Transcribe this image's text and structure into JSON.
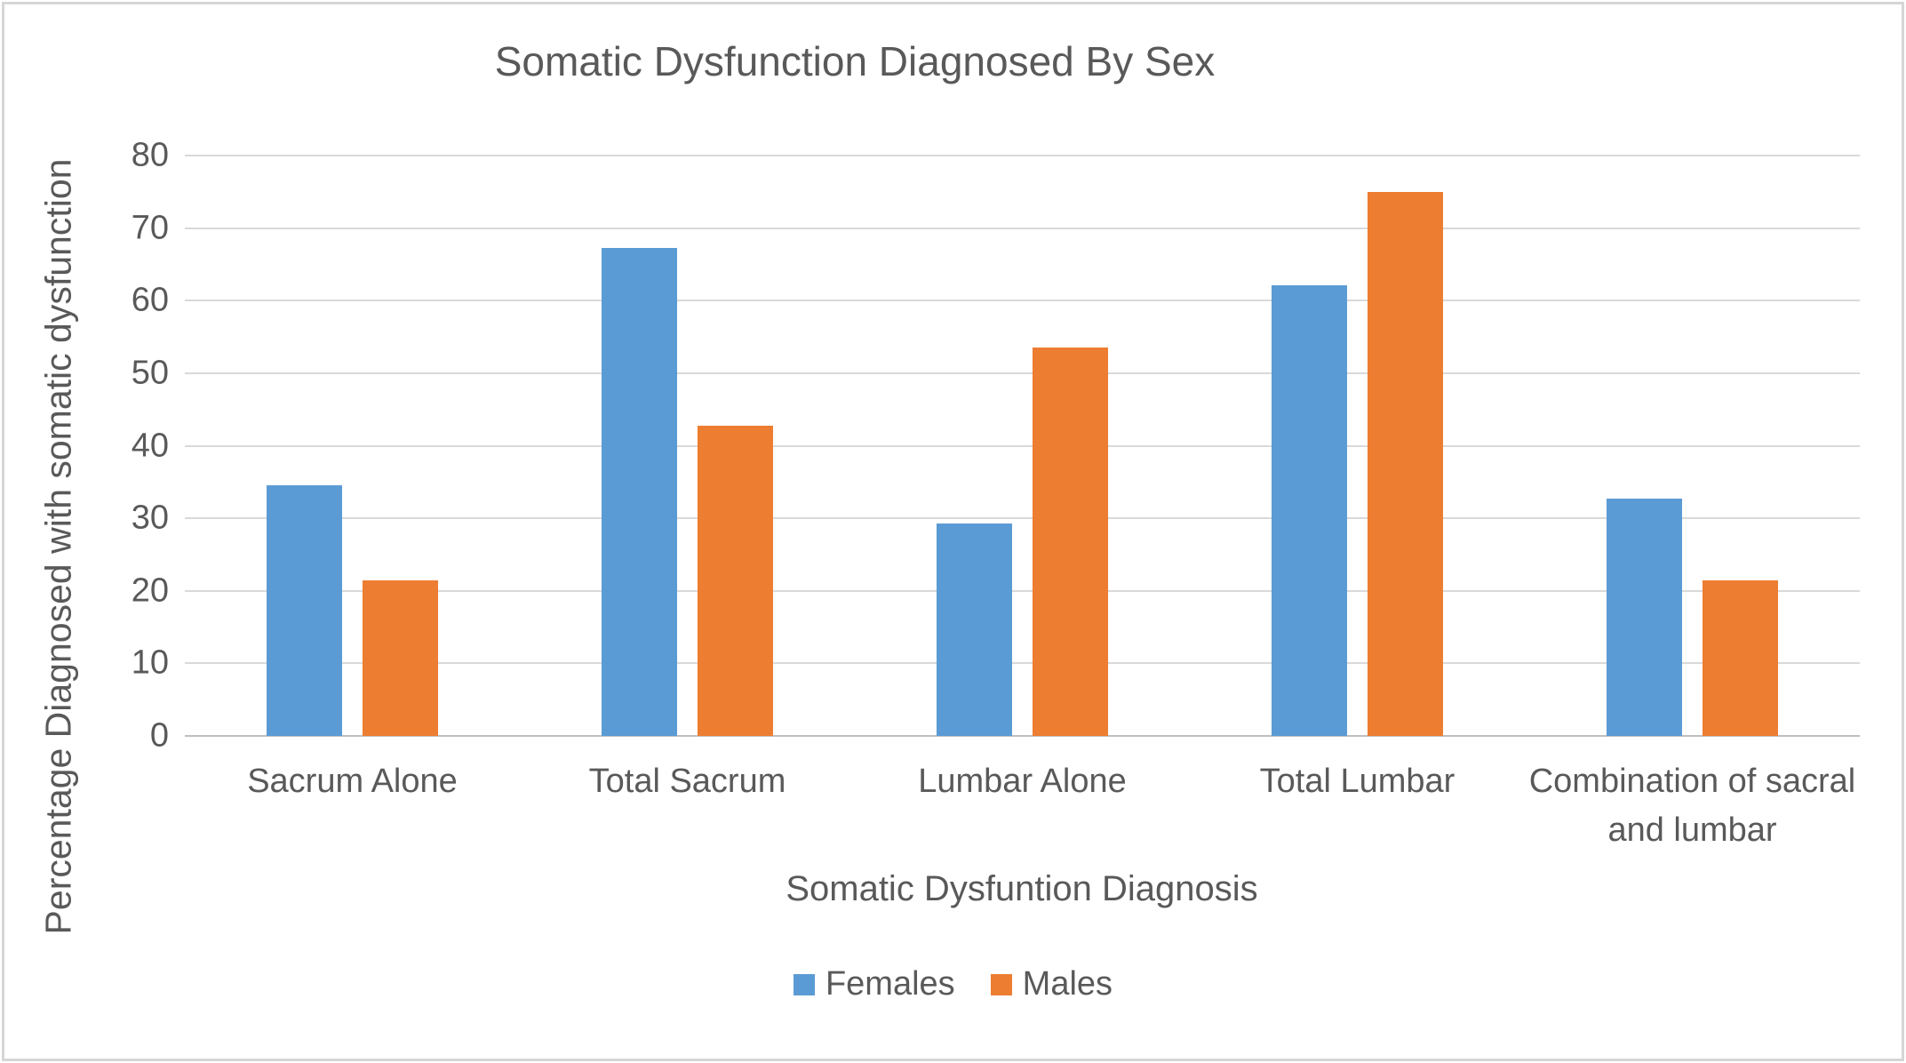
{
  "window": {
    "background_color": "#FFFFFF",
    "frame_border_color": "#D6D6D6"
  },
  "chart_data": {
    "type": "bar",
    "title": "Somatic Dysfunction Diagnosed By Sex",
    "xlabel": "Somatic Dysfuntion Diagnosis",
    "ylabel": "Percentage Diagnosed with somatic dysfunction",
    "categories": [
      "Sacrum Alone",
      "Total Sacrum",
      "Lumbar Alone",
      "Total Lumbar",
      "Combination of sacral and lumbar"
    ],
    "series": [
      {
        "name": "Females",
        "color": "#5B9BD5",
        "values": [
          34.5,
          67.3,
          29.3,
          62.1,
          32.7
        ]
      },
      {
        "name": "Males",
        "color": "#ED7D31",
        "values": [
          21.4,
          42.8,
          53.6,
          75.0,
          21.4
        ]
      }
    ],
    "ylim": [
      0,
      80
    ],
    "yticks": [
      0,
      10,
      20,
      30,
      40,
      50,
      60,
      70,
      80
    ],
    "grid": true,
    "gridline_color": "#D9D9D9",
    "axis_line_color": "#BFBFBF",
    "text_color": "#595959",
    "legend_position": "bottom"
  }
}
